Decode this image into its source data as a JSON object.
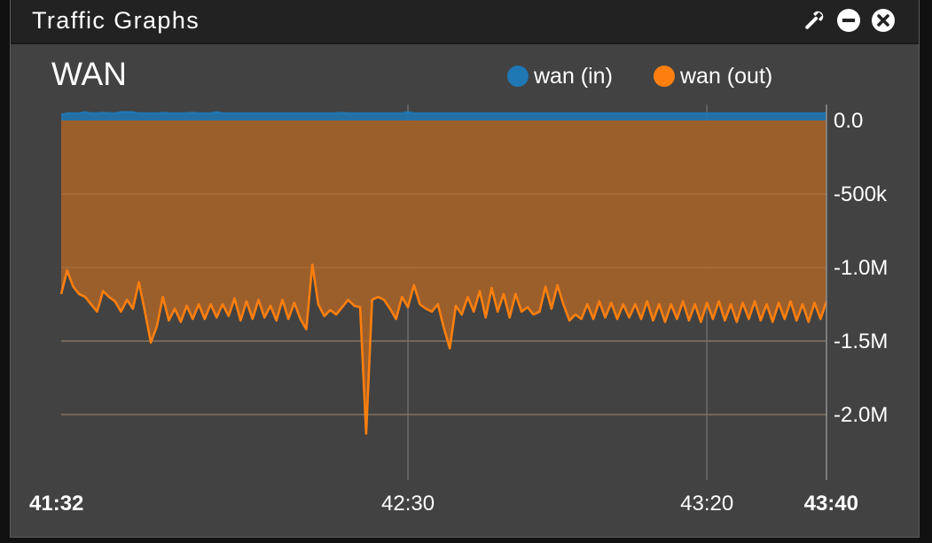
{
  "widget": {
    "title": "Traffic Graphs",
    "icons": [
      "wrench-icon",
      "minimize-icon",
      "close-icon"
    ]
  },
  "chart_data": {
    "type": "area",
    "title": "WAN",
    "legend": {
      "position": "top-right"
    },
    "colors": {
      "wan_in": "#1f77b4",
      "wan_out": "#ff7f0e",
      "out_fill": "#a0612b"
    },
    "x_ticks": [
      {
        "label": "41:32",
        "t": 0,
        "bold": true
      },
      {
        "label": "42:30",
        "t": 58,
        "bold": false
      },
      {
        "label": "43:20",
        "t": 108,
        "bold": false
      },
      {
        "label": "43:40",
        "t": 128,
        "bold": true
      }
    ],
    "y_ticks": [
      {
        "label": "0.0",
        "value": 0
      },
      {
        "label": "-500k",
        "value": -500000
      },
      {
        "label": "-1.0M",
        "value": -1000000
      },
      {
        "label": "-1.5M",
        "value": -1500000
      },
      {
        "label": "-2.0M",
        "value": -2000000
      }
    ],
    "ylim": [
      -2450000,
      100000
    ],
    "xlim": [
      0,
      128
    ],
    "series": [
      {
        "name": "wan (in)",
        "key": "wan_in",
        "values": [
          40000,
          48000,
          48000,
          48000,
          56000,
          48000,
          48000,
          52000,
          48000,
          48000,
          56000,
          56000,
          56000,
          48000,
          48000,
          48000,
          48000,
          52000,
          48000,
          48000,
          48000,
          48000,
          52000,
          48000,
          48000,
          48000,
          56000,
          48000,
          48000,
          48000,
          48000,
          48000,
          48000,
          48000,
          48000,
          48000,
          48000,
          48000,
          48000,
          48000,
          48000,
          48000,
          48000,
          48000,
          48000,
          48000,
          48000,
          52000,
          48000,
          48000,
          48000,
          48000,
          48000,
          48000,
          48000,
          48000,
          48000,
          48000,
          56000,
          48000,
          48000,
          48000,
          48000,
          48000,
          48000,
          48000,
          48000,
          48000,
          48000,
          48000,
          48000,
          48000,
          48000,
          48000,
          48000,
          48000,
          48000,
          48000,
          48000,
          48000,
          48000,
          48000,
          48000,
          48000,
          48000,
          48000,
          48000,
          48000,
          48000,
          48000,
          48000,
          48000,
          48000,
          48000,
          48000,
          48000,
          48000,
          48000,
          48000,
          48000,
          48000,
          48000,
          48000,
          48000,
          48000,
          48000,
          48000,
          48000,
          48000,
          48000,
          48000,
          48000,
          48000,
          48000,
          48000,
          48000,
          48000,
          48000,
          48000,
          48000,
          48000,
          48000,
          48000,
          48000,
          48000,
          48000,
          48000,
          48000,
          48000
        ]
      },
      {
        "name": "wan (out)",
        "key": "wan_out",
        "values": [
          -1180000,
          -1020000,
          -1130000,
          -1180000,
          -1200000,
          -1250000,
          -1300000,
          -1160000,
          -1200000,
          -1230000,
          -1300000,
          -1220000,
          -1280000,
          -1100000,
          -1300000,
          -1510000,
          -1400000,
          -1200000,
          -1360000,
          -1280000,
          -1370000,
          -1260000,
          -1350000,
          -1250000,
          -1350000,
          -1250000,
          -1340000,
          -1250000,
          -1330000,
          -1210000,
          -1360000,
          -1230000,
          -1350000,
          -1220000,
          -1340000,
          -1260000,
          -1360000,
          -1220000,
          -1350000,
          -1240000,
          -1350000,
          -1420000,
          -980000,
          -1250000,
          -1330000,
          -1290000,
          -1320000,
          -1270000,
          -1220000,
          -1260000,
          -1270000,
          -2130000,
          -1220000,
          -1200000,
          -1220000,
          -1280000,
          -1350000,
          -1200000,
          -1270000,
          -1120000,
          -1250000,
          -1280000,
          -1300000,
          -1250000,
          -1410000,
          -1550000,
          -1260000,
          -1320000,
          -1200000,
          -1300000,
          -1160000,
          -1340000,
          -1140000,
          -1300000,
          -1180000,
          -1340000,
          -1180000,
          -1300000,
          -1270000,
          -1320000,
          -1300000,
          -1130000,
          -1280000,
          -1120000,
          -1250000,
          -1360000,
          -1320000,
          -1350000,
          -1250000,
          -1350000,
          -1230000,
          -1340000,
          -1240000,
          -1350000,
          -1250000,
          -1340000,
          -1250000,
          -1350000,
          -1230000,
          -1360000,
          -1250000,
          -1370000,
          -1250000,
          -1350000,
          -1230000,
          -1360000,
          -1250000,
          -1370000,
          -1240000,
          -1350000,
          -1230000,
          -1360000,
          -1250000,
          -1370000,
          -1240000,
          -1350000,
          -1230000,
          -1360000,
          -1250000,
          -1370000,
          -1240000,
          -1350000,
          -1230000,
          -1360000,
          -1250000,
          -1370000,
          -1240000,
          -1350000,
          -1230000
        ]
      }
    ]
  }
}
